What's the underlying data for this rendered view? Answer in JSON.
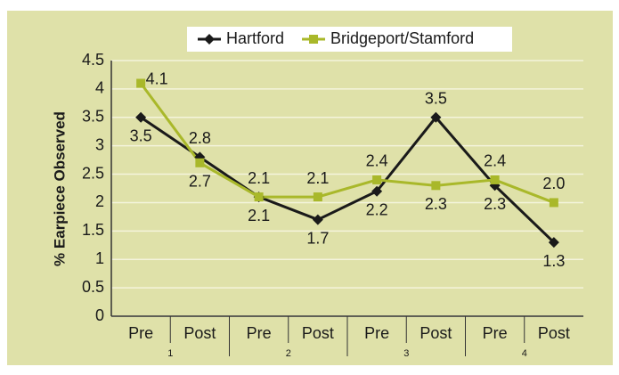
{
  "chart_data": {
    "type": "line",
    "y_label": "% Earpiece Observed",
    "categories": [
      "Pre",
      "Post",
      "Pre",
      "Post",
      "Pre",
      "Post",
      "Pre",
      "Post"
    ],
    "groups": [
      "1",
      "2",
      "3",
      "4"
    ],
    "series": [
      {
        "name": "Hartford",
        "color": "#1a1a1a",
        "marker": "diamond",
        "values": [
          3.5,
          2.8,
          2.1,
          1.7,
          2.2,
          3.5,
          2.3,
          1.3
        ]
      },
      {
        "name": "Bridgeport/Stamford",
        "color": "#a9b82a",
        "marker": "square",
        "values": [
          4.1,
          2.7,
          2.1,
          2.1,
          2.4,
          2.3,
          2.4,
          2.0
        ],
        "value_labels": [
          "4.1",
          "2.7",
          "2.1",
          "2.1",
          "2.4",
          "2.3",
          "2.4",
          "2.0"
        ]
      }
    ],
    "ylim": [
      0,
      4.5
    ],
    "yticks": [
      0,
      0.5,
      1,
      1.5,
      2,
      2.5,
      3,
      3.5,
      4,
      4.5
    ],
    "grid": true,
    "legend": "top"
  }
}
